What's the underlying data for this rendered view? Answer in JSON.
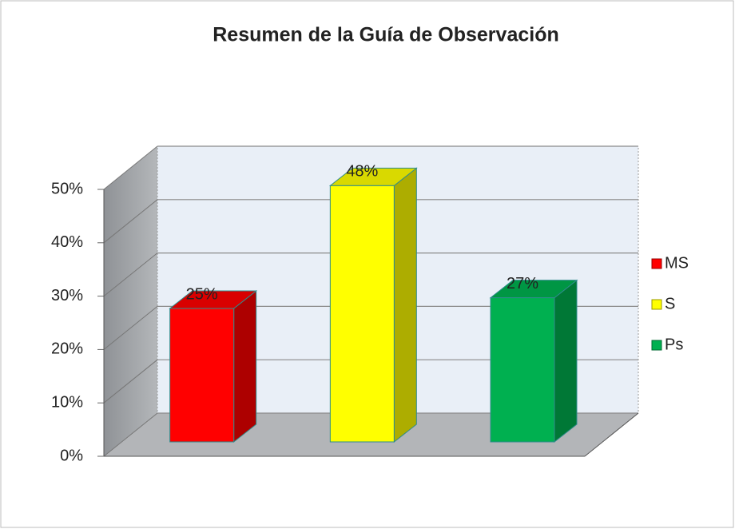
{
  "chart_data": {
    "type": "bar3d",
    "title": "Resumen de la Guía de Observación",
    "series": [
      {
        "name": "MS",
        "color": "#ff0000",
        "values": [
          25
        ],
        "value_labels": [
          "25%"
        ]
      },
      {
        "name": "S",
        "color": "#ffff00",
        "values": [
          48
        ],
        "value_labels": [
          "48%"
        ]
      },
      {
        "name": "Ps",
        "color": "#00b050",
        "values": [
          27
        ],
        "value_labels": [
          "27%"
        ]
      }
    ],
    "ylim": [
      0,
      50
    ],
    "yticks": [
      {
        "value": 0,
        "label": "0%"
      },
      {
        "value": 10,
        "label": "10%"
      },
      {
        "value": 20,
        "label": "20%"
      },
      {
        "value": 30,
        "label": "30%"
      },
      {
        "value": 40,
        "label": "40%"
      },
      {
        "value": 50,
        "label": "50%"
      }
    ],
    "grid": true,
    "legend": "right"
  }
}
